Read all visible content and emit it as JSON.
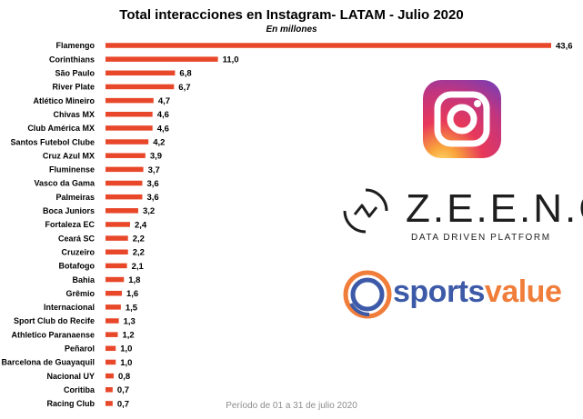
{
  "header": {
    "title": "Total interacciones en Instagram- LATAM - Julio 2020",
    "subtitle": "En millones"
  },
  "footer": {
    "period": "Período de 01 a 31 de julio 2020"
  },
  "logos": {
    "zeeng_word": "Z.E.E.N.G",
    "zeeng_tagline": "DATA DRIVEN PLATFORM",
    "sportsvalue_part1": "sports",
    "sportsvalue_part2": "value"
  },
  "colors": {
    "bar": "#e8472a",
    "instagram_start": "#f58529",
    "instagram_end": "#8134af"
  },
  "chart_data": {
    "type": "bar",
    "orientation": "horizontal",
    "title": "Total interacciones en Instagram- LATAM - Julio 2020",
    "subtitle": "En millones",
    "categories": [
      "Flamengo",
      "Corinthians",
      "São Paulo",
      "River Plate",
      "Atlético Mineiro",
      "Chivas MX",
      "Club América MX",
      "Santos Futebol Clube",
      "Cruz Azul MX",
      "Fluminense",
      "Vasco da Gama",
      "Palmeiras",
      "Boca Juniors",
      "Fortaleza EC",
      "Ceará SC",
      "Cruzeiro",
      "Botafogo",
      "Bahia",
      "Grêmio",
      "Internacional",
      "Sport Club do Recife",
      "Athletico Paranaense",
      "Peñarol",
      "Barcelona de Guayaquil",
      "Nacional UY",
      "Coritiba",
      "Racing Club"
    ],
    "values": [
      43.6,
      11.0,
      6.8,
      6.7,
      4.7,
      4.6,
      4.6,
      4.2,
      3.9,
      3.7,
      3.6,
      3.6,
      3.2,
      2.4,
      2.2,
      2.2,
      2.1,
      1.8,
      1.6,
      1.5,
      1.3,
      1.2,
      1.0,
      1.0,
      0.8,
      0.7,
      0.7
    ],
    "value_labels": [
      "43,6",
      "11,0",
      "6,8",
      "6,7",
      "4,7",
      "4,6",
      "4,6",
      "4,2",
      "3,9",
      "3,7",
      "3,6",
      "3,6",
      "3,2",
      "2,4",
      "2,2",
      "2,2",
      "2,1",
      "1,8",
      "1,6",
      "1,5",
      "1,3",
      "1,2",
      "1,0",
      "1,0",
      "0,8",
      "0,7",
      "0,7"
    ],
    "xlim": [
      0,
      43.6
    ],
    "grid": false,
    "legend": "none"
  }
}
